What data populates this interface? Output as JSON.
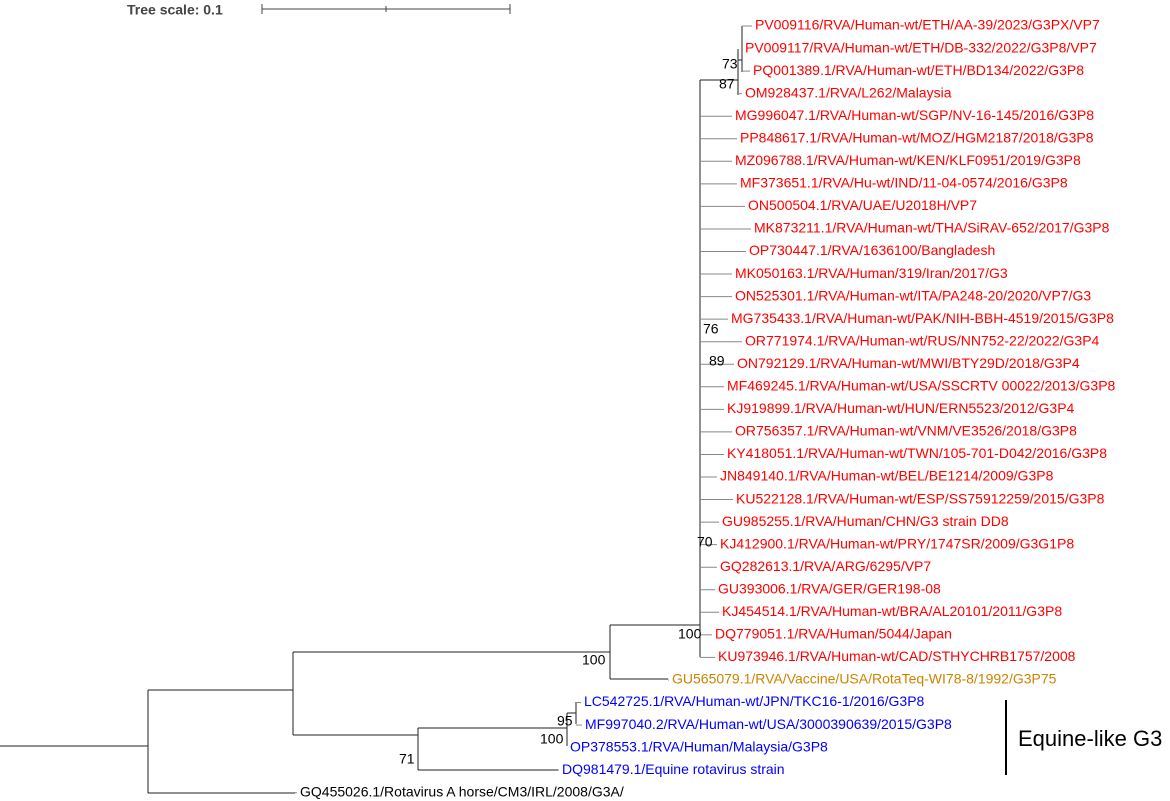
{
  "scale_label": "Tree scale: 0.1",
  "leaves": [
    {
      "label": "PV009116/RVA/Human-wt/ETH/AA-39/2023/G3PX/VP7",
      "color": "#ff0000"
    },
    {
      "label": "PV009117/RVA/Human-wt/ETH/DB-332/2022/G3P8/VP7",
      "color": "#ff0000"
    },
    {
      "label": "PQ001389.1/RVA/Human-wt/ETH/BD134/2022/G3P8",
      "color": "#ff0000"
    },
    {
      "label": "OM928437.1/RVA/L262/Malaysia",
      "color": "#ff0000"
    },
    {
      "label": "MG996047.1/RVA/Human-wt/SGP/NV-16-145/2016/G3P8",
      "color": "#ff0000"
    },
    {
      "label": "PP848617.1/RVA/Human-wt/MOZ/HGM2187/2018/G3P8",
      "color": "#ff0000"
    },
    {
      "label": "MZ096788.1/RVA/Human-wt/KEN/KLF0951/2019/G3P8",
      "color": "#ff0000"
    },
    {
      "label": "MF373651.1/RVA/Hu-wt/IND/11-04-0574/2016/G3P8",
      "color": "#ff0000"
    },
    {
      "label": "ON500504.1/RVA/UAE/U2018H/VP7",
      "color": "#ff0000"
    },
    {
      "label": "MK873211.1/RVA/Human-wt/THA/SiRAV-652/2017/G3P8",
      "color": "#ff0000"
    },
    {
      "label": "OP730447.1/RVA/1636100/Bangladesh",
      "color": "#ff0000"
    },
    {
      "label": "MK050163.1/RVA/Human/319/Iran/2017/G3",
      "color": "#ff0000"
    },
    {
      "label": "ON525301.1/RVA/Human-wt/ITA/PA248-20/2020/VP7/G3",
      "color": "#ff0000"
    },
    {
      "label": "MG735433.1/RVA/Human-wt/PAK/NIH-BBH-4519/2015/G3P8",
      "color": "#ff0000"
    },
    {
      "label": "OR771974.1/RVA/Human-wt/RUS/NN752-22/2022/G3P4",
      "color": "#ff0000"
    },
    {
      "label": "ON792129.1/RVA/Human-wt/MWI/BTY29D/2018/G3P4",
      "color": "#ff0000"
    },
    {
      "label": "MF469245.1/RVA/Human-wt/USA/SSCRTV 00022/2013/G3P8",
      "color": "#ff0000"
    },
    {
      "label": "KJ919899.1/RVA/Human-wt/HUN/ERN5523/2012/G3P4",
      "color": "#ff0000"
    },
    {
      "label": "OR756357.1/RVA/Human-wt/VNM/VE3526/2018/G3P8",
      "color": "#ff0000"
    },
    {
      "label": "KY418051.1/RVA/Human-wt/TWN/105-701-D042/2016/G3P8",
      "color": "#ff0000"
    },
    {
      "label": "JN849140.1/RVA/Human-wt/BEL/BE1214/2009/G3P8",
      "color": "#ff0000"
    },
    {
      "label": "KU522128.1/RVA/Human-wt/ESP/SS75912259/2015/G3P8",
      "color": "#ff0000"
    },
    {
      "label": "GU985255.1/RVA/Human/CHN/G3 strain DD8",
      "color": "#ff0000"
    },
    {
      "label": "KJ412900.1/RVA/Human-wt/PRY/1747SR/2009/G3G1P8",
      "color": "#ff0000"
    },
    {
      "label": "GQ282613.1/RVA/ARG/6295/VP7",
      "color": "#ff0000"
    },
    {
      "label": "GU393006.1/RVA/GER/GER198-08",
      "color": "#ff0000"
    },
    {
      "label": "KJ454514.1/RVA/Human-wt/BRA/AL20101/2011/G3P8",
      "color": "#ff0000"
    },
    {
      "label": "DQ779051.1/RVA/Human/5044/Japan",
      "color": "#ff0000"
    },
    {
      "label": "KU973946.1/RVA/Human-wt/CAD/STHYCHRB1757/2008",
      "color": "#ff0000"
    },
    {
      "label": "GU565079.1/RVA/Vaccine/USA/RotaTeq-WI78-8/1992/G3P75",
      "color": "#cc8400"
    },
    {
      "label": "LC542725.1/RVA/Human-wt/JPN/TKC16-1/2016/G3P8",
      "color": "#0000ff"
    },
    {
      "label": "MF997040.2/RVA/Human-wt/USA/3000390639/2015/G3P8",
      "color": "#0000ff"
    },
    {
      "label": "OP378553.1/RVA/Human/Malaysia/G3P8",
      "color": "#0000ff"
    },
    {
      "label": "DQ981479.1/Equine rotavirus strain",
      "color": "#0000ff"
    },
    {
      "label": "GQ455026.1/Rotavirus A horse/CM3/IRL/2008/G3A/",
      "color": "#000000"
    }
  ],
  "bootstraps": [
    "73",
    "87",
    "76",
    "89",
    "70",
    "100",
    "100",
    "95",
    "100",
    "71"
  ],
  "clade_label": "Equine-like G3"
}
